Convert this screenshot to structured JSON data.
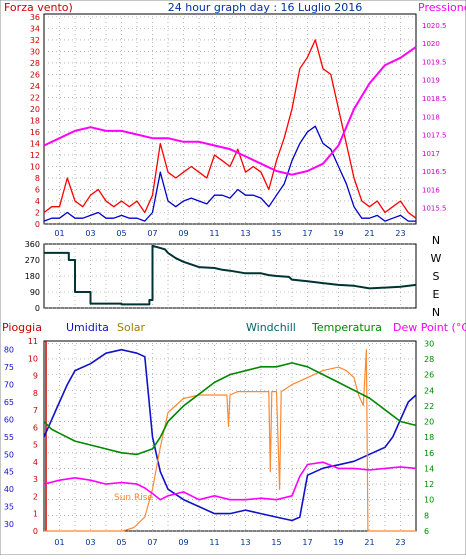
{
  "title": "24 hour graph day : 16 Luglio 2016",
  "colors": {
    "wind": "#ff0000",
    "gust": "#0000cc",
    "pressure": "#ff00ff",
    "direction": "#003333",
    "rain": "#cc0000",
    "humidity": "#1111cc",
    "solar": "#ff8833",
    "windchill": "#333399",
    "temperature": "#008800",
    "dewpoint": "#ff00ff",
    "grid": "#8c8c8c",
    "axisText": "#003399"
  },
  "chart_data": [
    {
      "type": "line",
      "id": "wind-pressure",
      "labels": {
        "left": "Forza vento)",
        "right": "Pressione"
      },
      "left_ticks": [
        "0",
        "2",
        "4",
        "6",
        "8",
        "10",
        "12",
        "14",
        "16",
        "18",
        "20",
        "22",
        "24",
        "26",
        "28",
        "30",
        "32",
        "34",
        "36"
      ],
      "right_ticks": [
        "1015.5",
        "1016",
        "1016.5",
        "1017",
        "1017.5",
        "1018",
        "1018.5",
        "1019",
        "1019.5",
        "1020",
        "1020.5"
      ],
      "x_ticks": [
        "01",
        "03",
        "05",
        "07",
        "09",
        "11",
        "13",
        "15",
        "17",
        "19",
        "21",
        "23"
      ],
      "ylim_left": [
        0,
        36.5
      ],
      "ylim_right": [
        1015.05,
        1020.8
      ],
      "series": [
        {
          "key": "wind",
          "axis": "left",
          "x": [
            0,
            0.5,
            1,
            1.5,
            2,
            2.5,
            3,
            3.5,
            4,
            4.5,
            5,
            5.5,
            6,
            6.5,
            7,
            7.5,
            8,
            8.5,
            9,
            9.5,
            10,
            10.5,
            11,
            11.5,
            12,
            12.5,
            13,
            13.5,
            14,
            14.5,
            15,
            15.5,
            16,
            16.5,
            17,
            17.5,
            18,
            18.5,
            19,
            19.5,
            20,
            20.5,
            21,
            21.5,
            22,
            22.5,
            23,
            23.5,
            24
          ],
          "values": [
            2,
            3,
            3,
            8,
            4,
            3,
            5,
            6,
            4,
            3,
            4,
            3,
            4,
            2,
            5,
            14,
            9,
            8,
            9,
            10,
            9,
            8,
            12,
            11,
            10,
            13,
            9,
            10,
            9,
            6,
            11,
            15,
            20,
            27,
            29,
            32,
            27,
            26,
            20,
            14,
            8,
            4,
            3,
            4,
            2,
            3,
            4,
            2,
            1
          ]
        },
        {
          "key": "gust",
          "axis": "left",
          "x": [
            0,
            0.5,
            1,
            1.5,
            2,
            2.5,
            3,
            3.5,
            4,
            4.5,
            5,
            5.5,
            6,
            6.5,
            7,
            7.5,
            8,
            8.5,
            9,
            9.5,
            10,
            10.5,
            11,
            11.5,
            12,
            12.5,
            13,
            13.5,
            14,
            14.5,
            15,
            15.5,
            16,
            16.5,
            17,
            17.5,
            18,
            18.5,
            19,
            19.5,
            20,
            20.5,
            21,
            21.5,
            22,
            22.5,
            23,
            23.5,
            24
          ],
          "values": [
            0.5,
            1,
            1,
            2,
            1,
            1,
            1.5,
            2,
            1,
            1,
            1.5,
            1,
            1,
            0.5,
            2,
            9,
            4,
            3,
            4,
            4.5,
            4,
            3.5,
            5,
            5,
            4.5,
            6,
            5,
            5,
            4.5,
            3,
            5,
            7,
            11,
            14,
            16,
            17,
            14,
            13,
            10,
            7,
            3,
            1,
            1,
            1.5,
            0.5,
            1,
            1.5,
            0.5,
            0.5
          ]
        },
        {
          "key": "pressure",
          "axis": "right",
          "x": [
            0,
            1,
            2,
            3,
            4,
            5,
            6,
            7,
            8,
            9,
            10,
            11,
            12,
            13,
            14,
            15,
            16,
            17,
            18,
            19,
            20,
            21,
            22,
            23,
            24
          ],
          "values": [
            1017.2,
            1017.4,
            1017.6,
            1017.7,
            1017.6,
            1017.6,
            1017.5,
            1017.4,
            1017.4,
            1017.3,
            1017.3,
            1017.2,
            1017.1,
            1016.9,
            1016.7,
            1016.5,
            1016.4,
            1016.5,
            1016.7,
            1017.2,
            1018.2,
            1018.9,
            1019.4,
            1019.6,
            1019.9
          ]
        }
      ]
    },
    {
      "type": "line",
      "id": "wind-direction",
      "left_ticks": [
        "0",
        "90",
        "180",
        "270",
        "360"
      ],
      "right_labels": [
        "N",
        "W",
        "S",
        "E",
        "N"
      ],
      "ylim": [
        0,
        360
      ],
      "series": [
        {
          "key": "direction",
          "x": [
            0,
            1.6,
            1.6,
            2,
            2,
            3,
            3,
            5,
            5,
            6.8,
            6.8,
            7,
            7,
            7.8,
            8,
            8.5,
            9,
            10,
            11,
            11.5,
            12,
            13,
            14,
            14.5,
            15,
            15.8,
            16,
            17,
            18,
            19,
            20,
            21,
            22,
            23,
            24
          ],
          "values": [
            310,
            310,
            270,
            270,
            90,
            90,
            25,
            25,
            20,
            20,
            45,
            45,
            350,
            330,
            310,
            280,
            260,
            230,
            225,
            215,
            210,
            195,
            195,
            185,
            180,
            175,
            160,
            150,
            140,
            130,
            125,
            110,
            115,
            120,
            130
          ]
        }
      ]
    },
    {
      "type": "line",
      "id": "humidity-temperature",
      "labels": {
        "rain": "Pioggia",
        "humidity": "Umidita",
        "solar": "Solar",
        "windchill": "Windchill",
        "temperature": "Temperatura",
        "dewpoint": "Dew Point (°C)"
      },
      "annotation": "Sun Rise",
      "left_ticks": [
        "30",
        "35",
        "40",
        "45",
        "50",
        "55",
        "60",
        "65",
        "70",
        "75",
        "80"
      ],
      "rain_ticks": [
        "0",
        "1",
        "2",
        "3",
        "4",
        "5",
        "6",
        "7",
        "8",
        "9",
        "10",
        "11"
      ],
      "right_ticks": [
        "6",
        "8",
        "10",
        "12",
        "14",
        "16",
        "18",
        "20",
        "22",
        "24",
        "26",
        "28",
        "30"
      ],
      "ylim_left": [
        28,
        82.5
      ],
      "ylim_right": [
        6,
        30.3
      ],
      "series": [
        {
          "key": "humidity",
          "axis": "left",
          "x": [
            0,
            0.5,
            1,
            1.5,
            2,
            3,
            4,
            5,
            6,
            6.5,
            7,
            7.5,
            8,
            9,
            10,
            11,
            12,
            13,
            14,
            15,
            16,
            16.5,
            17,
            18,
            19,
            20,
            21,
            22,
            22.5,
            23,
            23.5,
            24
          ],
          "values": [
            55,
            60,
            65,
            70,
            74,
            76,
            79,
            80,
            79,
            78,
            55,
            45,
            40,
            37,
            35,
            33,
            33,
            34,
            33,
            32,
            31,
            32,
            44,
            46,
            47,
            48,
            50,
            52,
            55,
            60,
            65,
            67
          ]
        },
        {
          "key": "solar",
          "axis": "left",
          "x": [
            0,
            5,
            5.1,
            5.8,
            6.5,
            7,
            7.5,
            8,
            9,
            10,
            11,
            11.8,
            11.9,
            12,
            12.5,
            13,
            14,
            14.5,
            14.6,
            14.7,
            15,
            15.2,
            15.3,
            16,
            17,
            18,
            19,
            19.5,
            20,
            20.3,
            20.6,
            20.8,
            20.9,
            21,
            24
          ],
          "values": [
            28,
            28,
            28,
            29,
            32,
            40,
            52,
            62,
            66,
            67,
            67,
            67,
            58,
            67,
            68,
            68,
            68,
            68,
            45,
            68,
            68,
            40,
            68,
            70,
            72,
            74,
            75,
            74,
            72,
            67,
            64,
            80,
            28,
            28,
            28
          ]
        },
        {
          "key": "temperature",
          "axis": "right",
          "x": [
            0,
            0.5,
            1,
            2,
            3,
            4,
            5,
            6,
            7,
            7.5,
            8,
            9,
            10,
            11,
            12,
            13,
            14,
            15,
            16,
            17,
            18,
            19,
            20,
            21,
            22,
            23,
            24
          ],
          "values": [
            20,
            19,
            18.5,
            17.5,
            17,
            16.5,
            16,
            15.8,
            16.5,
            18,
            20,
            22,
            23.5,
            25,
            26,
            26.5,
            27,
            27,
            27.5,
            27,
            26,
            25,
            24,
            23,
            21.5,
            20,
            19.5
          ]
        },
        {
          "key": "dewpoint",
          "axis": "right",
          "x": [
            0,
            1,
            2,
            3,
            4,
            5,
            6,
            6.5,
            7,
            7.5,
            8,
            9,
            10,
            11,
            12,
            13,
            14,
            15,
            16,
            16.5,
            17,
            18,
            19,
            20,
            21,
            22,
            23,
            24
          ],
          "values": [
            12,
            12.5,
            12.8,
            12.5,
            12,
            12.2,
            12,
            11.5,
            10.8,
            10,
            10.5,
            11,
            10,
            10.5,
            10,
            10,
            10.2,
            10,
            10.5,
            13,
            14.5,
            14.8,
            14,
            14,
            13.8,
            14,
            14.2,
            14
          ]
        }
      ]
    }
  ]
}
